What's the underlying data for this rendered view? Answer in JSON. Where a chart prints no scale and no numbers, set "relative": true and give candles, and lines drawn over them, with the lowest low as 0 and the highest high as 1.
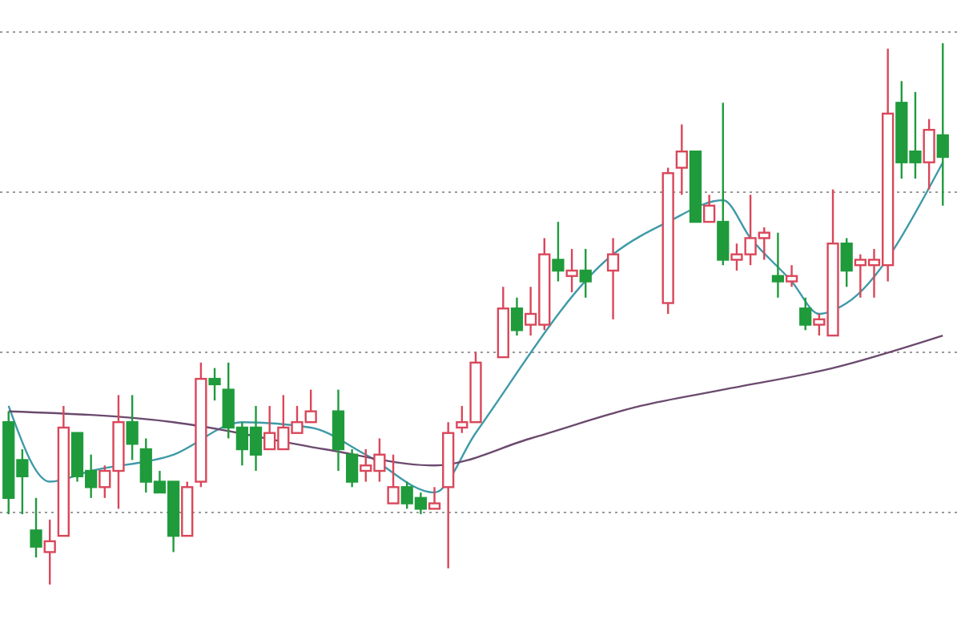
{
  "chart_data": {
    "type": "candlestick",
    "relative": true,
    "grid": "y",
    "categories": [
      null,
      null,
      null,
      null,
      null,
      null,
      null,
      null,
      null,
      null,
      null,
      null,
      null,
      null,
      null,
      null,
      null,
      null,
      null,
      null,
      null,
      null,
      null,
      null,
      null,
      null,
      null,
      null,
      null,
      null,
      null,
      null,
      null,
      null,
      null,
      null,
      null,
      null,
      null,
      null,
      null,
      null,
      null,
      null,
      null,
      null,
      null,
      null,
      null,
      null,
      null,
      null,
      null,
      null,
      null,
      null,
      null,
      null,
      null,
      null,
      null,
      null,
      null,
      null,
      null,
      null,
      null,
      null,
      null
    ],
    "ohlc": [
      [
        0.3,
        0.32,
        0.13,
        0.16
      ],
      [
        0.23,
        0.25,
        0.13,
        0.2
      ],
      [
        0.1,
        0.16,
        0.05,
        0.07
      ],
      [
        0.06,
        0.12,
        0,
        0.08
      ],
      [
        0.09,
        0.33,
        0.09,
        0.29
      ],
      [
        0.28,
        0.28,
        0.19,
        0.2
      ],
      [
        0.21,
        0.24,
        0.16,
        0.18
      ],
      [
        0.18,
        0.22,
        0.16,
        0.21
      ],
      [
        0.21,
        0.35,
        0.14,
        0.3
      ],
      [
        0.3,
        0.35,
        0.23,
        0.26
      ],
      [
        0.25,
        0.27,
        0.17,
        0.19
      ],
      [
        0.19,
        0.21,
        0.17,
        0.17
      ],
      [
        0.19,
        0.19,
        0.06,
        0.09
      ],
      [
        0.09,
        0.19,
        0.09,
        0.18
      ],
      [
        0.19,
        0.41,
        0.18,
        0.38
      ],
      [
        0.38,
        0.4,
        0.34,
        0.37
      ],
      [
        0.36,
        0.41,
        0.27,
        0.29
      ],
      [
        0.29,
        0.3,
        0.22,
        0.25
      ],
      [
        0.29,
        0.33,
        0.21,
        0.24
      ],
      [
        0.25,
        0.33,
        0.25,
        0.28
      ],
      [
        0.25,
        0.35,
        0.25,
        0.29
      ],
      [
        0.28,
        0.33,
        0.28,
        0.3
      ],
      [
        0.3,
        0.36,
        0.3,
        0.32
      ],
      null,
      [
        0.32,
        0.36,
        0.21,
        0.25
      ],
      [
        0.24,
        0.25,
        0.18,
        0.19
      ],
      [
        0.21,
        0.25,
        0.19,
        0.22
      ],
      [
        0.21,
        0.27,
        0.19,
        0.24
      ],
      [
        0.15,
        0.24,
        0.15,
        0.18
      ],
      [
        0.18,
        0.19,
        0.14,
        0.15
      ],
      [
        0.16,
        0.17,
        0.13,
        0.14
      ],
      [
        0.14,
        0.18,
        0.14,
        0.15
      ],
      [
        0.18,
        0.3,
        0.03,
        0.28
      ],
      [
        0.29,
        0.33,
        0.28,
        0.3
      ],
      [
        0.3,
        0.43,
        0.3,
        0.41
      ],
      null,
      [
        0.42,
        0.55,
        0.42,
        0.51
      ],
      [
        0.51,
        0.53,
        0.46,
        0.47
      ],
      [
        0.48,
        0.55,
        0.46,
        0.5
      ],
      [
        0.48,
        0.64,
        0.47,
        0.61
      ],
      [
        0.6,
        0.67,
        0.56,
        0.58
      ],
      [
        0.57,
        0.62,
        0.54,
        0.58
      ],
      [
        0.58,
        0.62,
        0.53,
        0.56
      ],
      null,
      [
        0.58,
        0.64,
        0.49,
        0.61
      ],
      null,
      null,
      null,
      [
        0.52,
        0.77,
        0.5,
        0.76
      ],
      [
        0.77,
        0.85,
        0.72,
        0.8
      ],
      [
        0.8,
        0.8,
        0.67,
        0.67
      ],
      [
        0.67,
        0.72,
        0.67,
        0.7
      ],
      [
        0.67,
        0.89,
        0.59,
        0.6
      ],
      [
        0.6,
        0.63,
        0.58,
        0.61
      ],
      [
        0.61,
        0.72,
        0.59,
        0.64
      ],
      [
        0.64,
        0.66,
        0.6,
        0.65
      ],
      [
        0.57,
        0.65,
        0.53,
        0.56
      ],
      [
        0.56,
        0.59,
        0.55,
        0.57
      ],
      [
        0.51,
        0.53,
        0.47,
        0.48
      ],
      [
        0.48,
        0.5,
        0.46,
        0.49
      ],
      [
        0.46,
        0.73,
        0.46,
        0.63
      ],
      [
        0.63,
        0.64,
        0.55,
        0.58
      ],
      [
        0.59,
        0.61,
        0.53,
        0.6
      ],
      [
        0.59,
        0.62,
        0.53,
        0.6
      ],
      [
        0.59,
        0.99,
        0.56,
        0.87
      ],
      [
        0.89,
        0.93,
        0.75,
        0.78
      ],
      [
        0.8,
        0.91,
        0.75,
        0.78
      ],
      [
        0.78,
        0.86,
        0.73,
        0.84
      ],
      [
        0.83,
        1,
        0.7,
        0.79
      ]
    ],
    "colors": [
      "#1f9b3c",
      "#1f9b3c",
      "#1f9b3c",
      "#d9475a",
      "#d9475a",
      "#1f9b3c",
      "#1f9b3c",
      "#d9475a",
      "#d9475a",
      "#1f9b3c",
      "#1f9b3c",
      "#1f9b3c",
      "#1f9b3c",
      "#d9475a",
      "#d9475a",
      "#1f9b3c",
      "#1f9b3c",
      "#1f9b3c",
      "#1f9b3c",
      "#d9475a",
      "#d9475a",
      "#d9475a",
      "#d9475a",
      null,
      "#1f9b3c",
      "#1f9b3c",
      "#d9475a",
      "#d9475a",
      "#d9475a",
      "#1f9b3c",
      "#1f9b3c",
      "#d9475a",
      "#d9475a",
      "#d9475a",
      "#d9475a",
      null,
      "#d9475a",
      "#1f9b3c",
      "#d9475a",
      "#d9475a",
      "#1f9b3c",
      "#d9475a",
      "#1f9b3c",
      null,
      "#d9475a",
      null,
      null,
      null,
      "#d9475a",
      "#d9475a",
      "#1f9b3c",
      "#d9475a",
      "#1f9b3c",
      "#d9475a",
      "#d9475a",
      "#d9475a",
      "#1f9b3c",
      "#d9475a",
      "#1f9b3c",
      "#d9475a",
      "#d9475a",
      "#1f9b3c",
      "#d9475a",
      "#d9475a",
      "#d9475a",
      "#1f9b3c",
      "#1f9b3c",
      "#d9475a",
      "#1f9b3c"
    ],
    "series": [
      {
        "type": "line",
        "color": "#3f9aa8",
        "values": [
          0.33,
          null,
          null,
          0.19,
          null,
          null,
          0.21,
          null,
          null,
          null,
          null,
          null,
          0.24,
          null,
          null,
          null,
          null,
          0.3,
          null,
          null,
          null,
          null,
          0.29,
          null,
          null,
          null,
          0.24,
          null,
          null,
          null,
          null,
          0.17,
          null,
          null,
          0.28,
          null,
          null,
          null,
          null,
          null,
          null,
          null,
          null,
          null,
          0.61,
          null,
          null,
          null,
          0.67,
          null,
          null,
          null,
          0.71,
          null,
          0.64,
          null,
          null,
          0.56,
          null,
          0.5,
          null,
          0.52,
          null,
          null,
          null,
          null,
          null,
          null,
          0.78
        ]
      },
      {
        "type": "line",
        "color": "#6b4a6e",
        "values": [
          0.32,
          null,
          null,
          null,
          null,
          null,
          null,
          null,
          null,
          null,
          null,
          null,
          0.3,
          null,
          null,
          null,
          null,
          null,
          null,
          null,
          null,
          null,
          null,
          0.25,
          null,
          null,
          null,
          null,
          null,
          null,
          null,
          0.22,
          null,
          null,
          null,
          null,
          null,
          null,
          0.27,
          null,
          null,
          null,
          null,
          null,
          null,
          null,
          0.33,
          null,
          null,
          null,
          null,
          null,
          0.36,
          null,
          null,
          null,
          null,
          null,
          null,
          null,
          0.4,
          null,
          null,
          null,
          null,
          null,
          null,
          null,
          0.46
        ]
      }
    ]
  }
}
